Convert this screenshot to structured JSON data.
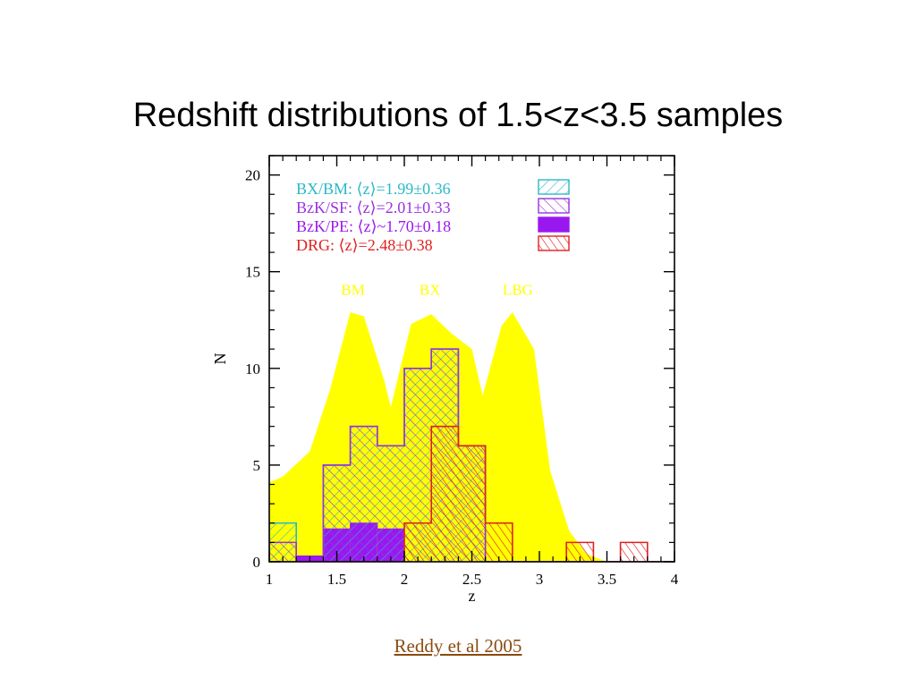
{
  "slide": {
    "title": "Redshift distributions of 1.5<z<3.5 samples",
    "citation": "Reddy et al 2005"
  },
  "colors": {
    "envelope": "#ffff00",
    "bxbm": "#2ab8c8",
    "bzksf": "#9a30e0",
    "bzkpe": "#9a18f0",
    "drg": "#e02020",
    "axis": "#000000"
  },
  "chart_data": {
    "type": "bar",
    "xlabel": "z",
    "ylabel": "N",
    "xlim": [
      1,
      4
    ],
    "ylim": [
      0,
      21
    ],
    "xticks": [
      1,
      1.5,
      2,
      2.5,
      3,
      3.5,
      4
    ],
    "xtick_labels": [
      "1",
      "1.5",
      "2",
      "2.5",
      "3",
      "3.5",
      "4"
    ],
    "yticks": [
      0,
      5,
      10,
      15,
      20
    ],
    "ytick_labels": [
      "0",
      "5",
      "10",
      "15",
      "20"
    ],
    "bin_width": 0.2,
    "envelope": {
      "x": [
        1.0,
        1.1,
        1.3,
        1.45,
        1.6,
        1.7,
        1.85,
        1.9,
        2.05,
        2.2,
        2.35,
        2.5,
        2.58,
        2.72,
        2.8,
        2.96,
        3.08,
        3.22,
        3.35,
        3.5
      ],
      "y": [
        4.1,
        4.4,
        5.7,
        8.9,
        12.9,
        12.7,
        9.4,
        8.0,
        12.3,
        12.8,
        11.8,
        11.0,
        8.6,
        12.2,
        12.9,
        11.0,
        4.7,
        1.6,
        0.4,
        0.0
      ],
      "annotations": [
        {
          "text": "BM",
          "x": 1.62,
          "y": 13.8
        },
        {
          "text": "BX",
          "x": 2.19,
          "y": 13.8
        },
        {
          "text": "LBG",
          "x": 2.84,
          "y": 13.8
        }
      ]
    },
    "series": [
      {
        "name": "BX/BM",
        "legend": "BX/BM:  ⟨z⟩=1.99±0.36",
        "bins": [
          [
            1.0,
            2
          ],
          [
            1.2,
            0
          ],
          [
            1.4,
            5
          ],
          [
            1.6,
            7
          ],
          [
            1.8,
            6
          ],
          [
            2.0,
            10
          ],
          [
            2.2,
            11
          ],
          [
            2.4,
            6
          ],
          [
            2.6,
            0
          ],
          [
            2.8,
            0
          ],
          [
            3.0,
            0
          ],
          [
            3.2,
            0
          ],
          [
            3.4,
            0
          ],
          [
            3.6,
            0
          ],
          [
            3.8,
            0
          ]
        ]
      },
      {
        "name": "BzK/SF",
        "legend": "BzK/SF:  ⟨z⟩=2.01±0.33",
        "bins": [
          [
            1.0,
            1
          ],
          [
            1.2,
            0
          ],
          [
            1.4,
            5
          ],
          [
            1.6,
            7
          ],
          [
            1.8,
            6
          ],
          [
            2.0,
            10
          ],
          [
            2.2,
            11
          ],
          [
            2.4,
            6
          ],
          [
            2.6,
            0
          ],
          [
            2.8,
            0
          ],
          [
            3.0,
            0
          ],
          [
            3.2,
            0
          ],
          [
            3.4,
            0
          ],
          [
            3.6,
            0
          ],
          [
            3.8,
            0
          ]
        ]
      },
      {
        "name": "BzK/PE",
        "legend": "BzK/PE:  ⟨z⟩~1.70±0.18",
        "bins": [
          [
            1.0,
            0
          ],
          [
            1.2,
            0.3
          ],
          [
            1.4,
            1.7
          ],
          [
            1.6,
            2.0
          ],
          [
            1.8,
            1.7
          ],
          [
            2.0,
            0
          ],
          [
            2.2,
            0
          ],
          [
            2.4,
            0
          ],
          [
            2.6,
            0
          ],
          [
            2.8,
            0
          ],
          [
            3.0,
            0
          ],
          [
            3.2,
            0
          ],
          [
            3.4,
            0
          ],
          [
            3.6,
            0
          ],
          [
            3.8,
            0
          ]
        ]
      },
      {
        "name": "DRG",
        "legend": "DRG:  ⟨z⟩=2.48±0.38",
        "bins": [
          [
            1.0,
            0
          ],
          [
            1.2,
            0
          ],
          [
            1.4,
            0
          ],
          [
            1.6,
            0
          ],
          [
            1.8,
            0
          ],
          [
            2.0,
            2
          ],
          [
            2.2,
            7
          ],
          [
            2.4,
            6
          ],
          [
            2.6,
            2
          ],
          [
            2.8,
            0
          ],
          [
            3.0,
            0
          ],
          [
            3.2,
            1
          ],
          [
            3.4,
            0
          ],
          [
            3.6,
            1
          ],
          [
            3.8,
            0
          ]
        ]
      }
    ],
    "legend_position": "top-left",
    "grid": false
  }
}
